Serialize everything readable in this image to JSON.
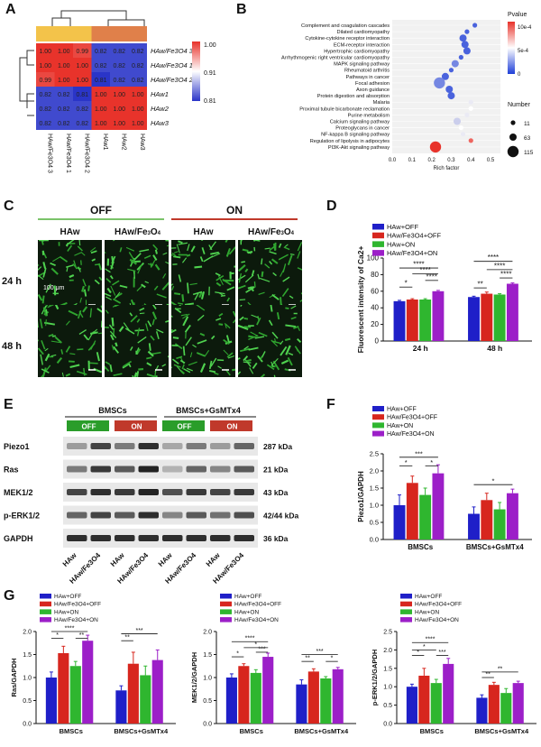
{
  "panels": {
    "A": "A",
    "B": "B",
    "C": "C",
    "D": "D",
    "E": "E",
    "F": "F",
    "G": "G"
  },
  "panel_a": {
    "rows": [
      "HAw/Fe3O4 3",
      "HAw/Fe3O4 1",
      "HAw/Fe3O4 2",
      "HAw1",
      "HAw2",
      "HAw3"
    ],
    "cols": [
      "HAw/Fe3O4 3",
      "HAw/Fe3O4 1",
      "HAw/Fe3O4 2",
      "HAw1",
      "HAw2",
      "HAw3"
    ],
    "values": [
      [
        1.0,
        1.0,
        0.99,
        0.82,
        0.82,
        0.82
      ],
      [
        1.0,
        1.0,
        1.0,
        0.82,
        0.82,
        0.82
      ],
      [
        0.99,
        1.0,
        1.0,
        0.81,
        0.82,
        0.82
      ],
      [
        0.82,
        0.82,
        0.81,
        1.0,
        1.0,
        1.0
      ],
      [
        0.82,
        0.82,
        0.82,
        1.0,
        1.0,
        1.0
      ],
      [
        0.82,
        0.82,
        0.82,
        1.0,
        1.0,
        1.0
      ]
    ],
    "scale": [
      "1.00",
      "0.91",
      "0.81"
    ],
    "colors": {
      "high": "#e8332b",
      "mid": "#ffffff",
      "low": "#2a35c8",
      "top_left": "#f3c34a",
      "top_right": "#e0804a"
    }
  },
  "panel_b": {
    "pathways": [
      "Complement and coagulation cascades",
      "Dilated cardiomyopathy",
      "Cytokine-cytokine receptor interaction",
      "ECM-receptor interaction",
      "Hypertrophic cardiomyopathy",
      "Arrhythmogenic right ventricular cardiomyopathy",
      "MAPK signaling pathway",
      "Rheumatoid arthritis",
      "Pathways in cancer",
      "Focal adhesion",
      "Axon guidance",
      "Protein digestion and absorption",
      "Malaria",
      "Proximal tubule bicarbonate reclamation",
      "Purine metabolism",
      "Calcium signaling pathway",
      "Proteoglycans in cancer",
      "NF-kappa B signaling pathway",
      "Regulation of lipolysis in adipocytes",
      "PI3K-Akt signaling pathway"
    ],
    "rich_factor": [
      0.42,
      0.38,
      0.36,
      0.37,
      0.38,
      0.35,
      0.32,
      0.3,
      0.27,
      0.24,
      0.29,
      0.3,
      0.4,
      0.4,
      0.38,
      0.33,
      0.35,
      0.36,
      0.4,
      0.22
    ],
    "size": [
      11,
      11,
      63,
      63,
      63,
      11,
      63,
      11,
      63,
      115,
      63,
      63,
      11,
      11,
      11,
      63,
      11,
      11,
      11,
      115
    ],
    "pvalue_level": [
      0.1,
      0.1,
      0.1,
      0.1,
      0.1,
      0.1,
      0.2,
      0.1,
      0.1,
      0.2,
      0.1,
      0.1,
      0.5,
      0.6,
      0.5,
      0.4,
      0.6,
      0.5,
      0.9,
      1.0
    ],
    "xticks": [
      "0.0",
      "0.1",
      "0.2",
      "0.3",
      "0.4",
      "0.5"
    ],
    "xlabel": "Rich factor",
    "legend_title": "Pvalue",
    "legend_ticks": [
      "10e-4",
      "5e-4",
      "0"
    ],
    "size_title": "Number",
    "size_labels": [
      "11",
      "63",
      "115"
    ]
  },
  "panel_c": {
    "off": "OFF",
    "on": "ON",
    "cols": [
      "HAw",
      "HAw/Fe3O4",
      "HAw",
      "HAw/Fe3O4"
    ],
    "rows": [
      "24 h",
      "48 h"
    ],
    "scale": "100 μm"
  },
  "chart_data": [
    {
      "type": "bar",
      "id": "D",
      "categories": [
        "24 h",
        "48 h"
      ],
      "series": [
        {
          "name": "HAw+OFF",
          "values": [
            48,
            53
          ],
          "err": [
            1,
            1
          ]
        },
        {
          "name": "HAw/Fe3O4+OFF",
          "values": [
            50,
            57
          ],
          "err": [
            1,
            2
          ]
        },
        {
          "name": "HAw+ON",
          "values": [
            50,
            56
          ],
          "err": [
            1,
            1
          ]
        },
        {
          "name": "HAw/Fe3O4+ON",
          "values": [
            60,
            69
          ],
          "err": [
            1,
            1
          ]
        }
      ],
      "ylabel": "Fluorescent intensity of Ca2+",
      "ylim": [
        0,
        100
      ],
      "yticks": [
        0,
        20,
        40,
        60,
        80,
        100
      ],
      "annotations": [
        "*",
        "****",
        "****",
        "****",
        "**",
        "****",
        "****",
        "****"
      ]
    },
    {
      "type": "bar",
      "id": "F",
      "categories": [
        "BMSCs",
        "BMSCs+GsMTx4"
      ],
      "series": [
        {
          "name": "HAw+OFF",
          "values": [
            1.0,
            0.75
          ],
          "err": [
            0.3,
            0.2
          ]
        },
        {
          "name": "HAw/Fe3O4+OFF",
          "values": [
            1.65,
            1.15
          ],
          "err": [
            0.2,
            0.2
          ]
        },
        {
          "name": "HAw+ON",
          "values": [
            1.3,
            0.88
          ],
          "err": [
            0.2,
            0.2
          ]
        },
        {
          "name": "HAw/Fe3O4+ON",
          "values": [
            1.93,
            1.35
          ],
          "err": [
            0.25,
            0.12
          ]
        }
      ],
      "ylabel": "Piezo1/GAPDH",
      "ylim": [
        0,
        2.5
      ],
      "yticks": [
        0.0,
        0.5,
        1.0,
        1.5,
        2.0,
        2.5
      ],
      "annotations": [
        "*",
        "***",
        "*",
        "*"
      ]
    },
    {
      "type": "bar",
      "id": "G1",
      "categories": [
        "BMSCs",
        "BMSCs+GsMTx4"
      ],
      "series": [
        {
          "name": "HAw+OFF",
          "values": [
            1.0,
            0.72
          ],
          "err": [
            0.12,
            0.1
          ]
        },
        {
          "name": "HAw/Fe3O4+OFF",
          "values": [
            1.53,
            1.3
          ],
          "err": [
            0.15,
            0.25
          ]
        },
        {
          "name": "HAw+ON",
          "values": [
            1.25,
            1.05
          ],
          "err": [
            0.1,
            0.2
          ]
        },
        {
          "name": "HAw/Fe3O4+ON",
          "values": [
            1.8,
            1.38
          ],
          "err": [
            0.12,
            0.22
          ]
        }
      ],
      "ylabel": "Ras/GAPDH",
      "ylim": [
        0,
        2.0
      ],
      "yticks": [
        0.0,
        0.5,
        1.0,
        1.5,
        2.0
      ],
      "annotations": [
        "*",
        "**",
        "****",
        "**",
        "***"
      ]
    },
    {
      "type": "bar",
      "id": "G2",
      "categories": [
        "BMSCs",
        "BMSCs+GsMTx4"
      ],
      "series": [
        {
          "name": "HAw+OFF",
          "values": [
            1.0,
            0.85
          ],
          "err": [
            0.08,
            0.1
          ]
        },
        {
          "name": "HAw/Fe3O4+OFF",
          "values": [
            1.25,
            1.13
          ],
          "err": [
            0.05,
            0.06
          ]
        },
        {
          "name": "HAw+ON",
          "values": [
            1.1,
            0.98
          ],
          "err": [
            0.07,
            0.04
          ]
        },
        {
          "name": "HAw/Fe3O4+ON",
          "values": [
            1.45,
            1.18
          ],
          "err": [
            0.08,
            0.04
          ]
        }
      ],
      "ylabel": "MEK1/2/GAPDH",
      "ylim": [
        0,
        2.0
      ],
      "yticks": [
        0.0,
        0.5,
        1.0,
        1.5,
        2.0
      ],
      "annotations": [
        "*",
        "*",
        "***",
        "****",
        "**",
        "*",
        "***"
      ]
    },
    {
      "type": "bar",
      "id": "G3",
      "categories": [
        "BMSCs",
        "BMSCs+GsMTx4"
      ],
      "series": [
        {
          "name": "HAw+OFF",
          "values": [
            1.0,
            0.7
          ],
          "err": [
            0.07,
            0.08
          ]
        },
        {
          "name": "HAw/Fe3O4+OFF",
          "values": [
            1.3,
            1.05
          ],
          "err": [
            0.2,
            0.07
          ]
        },
        {
          "name": "HAw+ON",
          "values": [
            1.1,
            0.83
          ],
          "err": [
            0.1,
            0.12
          ]
        },
        {
          "name": "HAw/Fe3O4+ON",
          "values": [
            1.62,
            1.1
          ],
          "err": [
            0.15,
            0.05
          ]
        }
      ],
      "ylabel": "p-ERK1/2/GAPDH",
      "ylim": [
        0,
        2.5
      ],
      "yticks": [
        0.0,
        0.5,
        1.0,
        1.5,
        2.0,
        2.5
      ],
      "annotations": [
        "*",
        "*",
        "***",
        "****",
        "**",
        "**"
      ]
    }
  ],
  "legend": [
    "HAw+OFF",
    "HAw/Fe3O4+OFF",
    "HAw+ON",
    "HAw/Fe3O4+ON"
  ],
  "colors": {
    "s1": "#1f1fc8",
    "s2": "#d7261e",
    "s3": "#2fb62f",
    "s4": "#9c1fc8",
    "off": "#2a9d2a",
    "on": "#c0392b"
  },
  "panel_e": {
    "group1": "BMSCs",
    "group2": "BMSCs+GsMTx4",
    "off": "OFF",
    "on": "ON",
    "proteins": [
      "Piezo1",
      "Ras",
      "MEK1/2",
      "p-ERK1/2",
      "GAPDH"
    ],
    "kda": [
      "287 kDa",
      "21 kDa",
      "43 kDa",
      "42/44 kDa",
      "36 kDa"
    ],
    "lanes": [
      "HAw",
      "HAw/Fe3O4",
      "HAw",
      "HAw/Fe3O4",
      "HAw",
      "HAw/Fe3O4",
      "HAw",
      "HAw/Fe3O4"
    ]
  }
}
